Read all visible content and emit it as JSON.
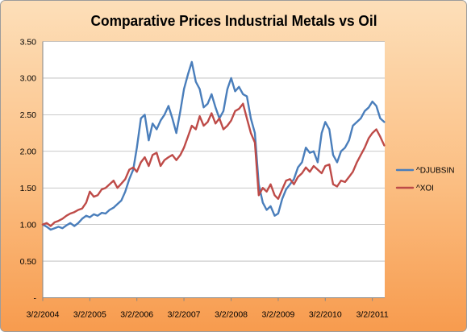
{
  "chart_data": {
    "type": "line",
    "title": "Comparative Prices Industrial Metals vs Oil",
    "xlim": [
      "2004-03-02",
      "2011-06-06"
    ],
    "xtick_labels": [
      "3/2/2004",
      "3/2/2005",
      "3/2/2006",
      "3/2/2007",
      "3/2/2008",
      "3/2/2009",
      "3/2/2010",
      "3/2/2011"
    ],
    "ylim": [
      0,
      3.5
    ],
    "ytick_labels": [
      "-",
      "0.50",
      "1.00",
      "1.50",
      "2.00",
      "2.50",
      "3.00",
      "3.50"
    ],
    "grid": true,
    "legend_position": "right",
    "x": [
      "2004-03-02",
      "2004-04-02",
      "2004-05-02",
      "2004-06-02",
      "2004-07-02",
      "2004-08-02",
      "2004-09-02",
      "2004-10-02",
      "2004-11-02",
      "2004-12-02",
      "2005-01-02",
      "2005-02-02",
      "2005-03-02",
      "2005-04-02",
      "2005-05-02",
      "2005-06-02",
      "2005-07-02",
      "2005-08-02",
      "2005-09-02",
      "2005-10-02",
      "2005-11-02",
      "2005-12-02",
      "2006-01-02",
      "2006-02-02",
      "2006-03-02",
      "2006-04-02",
      "2006-05-02",
      "2006-06-02",
      "2006-07-02",
      "2006-08-02",
      "2006-09-02",
      "2006-10-02",
      "2006-11-02",
      "2006-12-02",
      "2007-01-02",
      "2007-02-02",
      "2007-03-02",
      "2007-04-02",
      "2007-05-02",
      "2007-06-02",
      "2007-07-02",
      "2007-08-02",
      "2007-09-02",
      "2007-10-02",
      "2007-11-02",
      "2007-12-02",
      "2008-01-02",
      "2008-02-02",
      "2008-03-02",
      "2008-04-02",
      "2008-05-02",
      "2008-06-02",
      "2008-07-02",
      "2008-08-02",
      "2008-09-02",
      "2008-10-02",
      "2008-11-02",
      "2008-12-02",
      "2009-01-02",
      "2009-02-02",
      "2009-03-02",
      "2009-04-02",
      "2009-05-02",
      "2009-06-02",
      "2009-07-02",
      "2009-08-02",
      "2009-09-02",
      "2009-10-02",
      "2009-11-02",
      "2009-12-02",
      "2010-01-02",
      "2010-02-02",
      "2010-03-02",
      "2010-04-02",
      "2010-05-02",
      "2010-06-02",
      "2010-07-02",
      "2010-08-02",
      "2010-09-02",
      "2010-10-02",
      "2010-11-02",
      "2010-12-02",
      "2011-01-02",
      "2011-02-02",
      "2011-03-02",
      "2011-04-02",
      "2011-05-02",
      "2011-06-02"
    ],
    "series": [
      {
        "name": "^DJUBSIN",
        "color": "#4A7EBB",
        "values": [
          1.0,
          0.97,
          0.93,
          0.95,
          0.97,
          0.95,
          0.99,
          1.02,
          0.98,
          1.02,
          1.08,
          1.12,
          1.1,
          1.14,
          1.12,
          1.16,
          1.15,
          1.2,
          1.23,
          1.28,
          1.33,
          1.45,
          1.62,
          1.75,
          2.05,
          2.45,
          2.5,
          2.15,
          2.38,
          2.3,
          2.42,
          2.5,
          2.62,
          2.45,
          2.25,
          2.55,
          2.85,
          3.05,
          3.22,
          2.95,
          2.85,
          2.6,
          2.65,
          2.78,
          2.6,
          2.45,
          2.55,
          2.85,
          3.0,
          2.82,
          2.88,
          2.78,
          2.75,
          2.45,
          2.25,
          1.55,
          1.3,
          1.2,
          1.25,
          1.12,
          1.15,
          1.35,
          1.48,
          1.55,
          1.62,
          1.78,
          1.85,
          2.05,
          1.98,
          2.0,
          1.85,
          2.25,
          2.4,
          2.3,
          1.95,
          1.85,
          2.0,
          2.05,
          2.15,
          2.35,
          2.4,
          2.45,
          2.55,
          2.6,
          2.68,
          2.62,
          2.45,
          2.4
        ]
      },
      {
        "name": "^XOI",
        "color": "#BE4B48",
        "values": [
          1.0,
          1.02,
          0.98,
          1.03,
          1.05,
          1.08,
          1.12,
          1.15,
          1.17,
          1.2,
          1.22,
          1.3,
          1.45,
          1.38,
          1.4,
          1.48,
          1.5,
          1.55,
          1.6,
          1.5,
          1.56,
          1.62,
          1.75,
          1.78,
          1.72,
          1.85,
          1.92,
          1.8,
          1.95,
          1.98,
          1.8,
          1.88,
          1.92,
          1.95,
          1.88,
          1.95,
          2.05,
          2.2,
          2.35,
          2.3,
          2.48,
          2.35,
          2.4,
          2.52,
          2.38,
          2.45,
          2.3,
          2.35,
          2.42,
          2.55,
          2.58,
          2.65,
          2.45,
          2.25,
          2.12,
          1.4,
          1.5,
          1.45,
          1.55,
          1.4,
          1.35,
          1.48,
          1.6,
          1.62,
          1.55,
          1.65,
          1.7,
          1.78,
          1.72,
          1.8,
          1.75,
          1.7,
          1.8,
          1.82,
          1.55,
          1.52,
          1.6,
          1.58,
          1.65,
          1.72,
          1.85,
          1.95,
          2.05,
          2.18,
          2.25,
          2.3,
          2.2,
          2.08
        ]
      }
    ]
  }
}
